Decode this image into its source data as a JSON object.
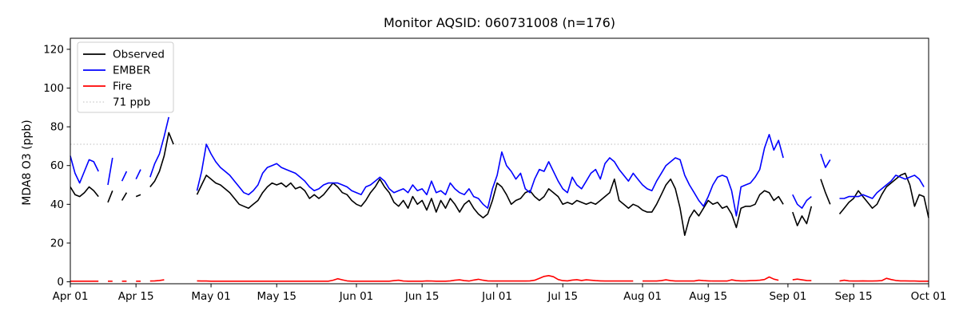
{
  "chart_data": {
    "type": "line",
    "title": "Monitor AQSID: 060731008 (n=176)",
    "xlabel": "",
    "ylabel": "MDA8 O3 (ppb)",
    "x_unit": "days since Apr 01 (daily values)",
    "xlim": [
      0,
      183
    ],
    "ylim": [
      -1,
      125.7
    ],
    "grid": false,
    "yticks": [
      0,
      20,
      40,
      60,
      80,
      100,
      120
    ],
    "xticks": {
      "days": [
        0,
        14,
        30,
        44,
        61,
        75,
        91,
        105,
        122,
        136,
        153,
        167,
        183
      ],
      "labels": [
        "Apr 01",
        "Apr 15",
        "May 01",
        "May 15",
        "Jun 01",
        "Jun 15",
        "Jul 01",
        "Jul 15",
        "Aug 01",
        "Aug 15",
        "Sep 01",
        "Sep 15",
        "Oct 01"
      ]
    },
    "threshold_line": {
      "value": 71,
      "label": "71 ppb",
      "color": "#c9c9c9",
      "linestyle": "dotted"
    },
    "legend": {
      "position": "upper left",
      "entries": [
        {
          "label": "Observed",
          "color": "#000000",
          "style": "solid"
        },
        {
          "label": "EMBER",
          "color": "#0000ff",
          "style": "solid"
        },
        {
          "label": "Fire",
          "color": "#ff0000",
          "style": "solid"
        },
        {
          "label": "71 ppb",
          "color": "#c9c9c9",
          "style": "dotted"
        }
      ]
    },
    "series": [
      {
        "name": "Observed",
        "color": "#000000",
        "values": [
          49,
          45,
          44,
          46,
          49,
          47,
          44,
          null,
          41,
          47,
          null,
          42,
          46,
          null,
          44,
          45,
          null,
          49,
          52,
          57,
          65,
          77,
          71,
          null,
          null,
          null,
          null,
          45,
          50,
          55,
          53,
          51,
          50,
          48,
          46,
          43,
          40,
          39,
          38,
          40,
          42,
          46,
          49,
          51,
          50,
          51,
          49,
          51,
          48,
          49,
          47,
          43,
          45,
          43,
          45,
          48,
          51,
          49,
          46,
          45,
          42,
          40,
          39,
          42,
          46,
          49,
          53,
          49,
          46,
          41,
          39,
          42,
          38,
          44,
          40,
          42,
          37,
          43,
          36,
          42,
          38,
          43,
          40,
          36,
          40,
          42,
          38,
          35,
          33,
          35,
          42,
          51,
          49,
          45,
          40,
          42,
          43,
          46,
          47,
          44,
          42,
          44,
          48,
          46,
          44,
          40,
          41,
          40,
          42,
          41,
          40,
          41,
          40,
          42,
          44,
          46,
          53,
          42,
          40,
          38,
          40,
          39,
          37,
          36,
          36,
          40,
          45,
          50,
          53,
          48,
          38,
          24,
          33,
          37,
          34,
          38,
          42,
          40,
          41,
          38,
          39,
          35,
          28,
          38,
          39,
          39,
          40,
          45,
          47,
          46,
          42,
          44,
          40,
          null,
          36,
          29,
          34,
          30,
          39,
          null,
          53,
          46,
          40,
          null,
          35,
          38,
          41,
          43,
          47,
          44,
          41,
          38,
          40,
          45,
          49,
          51,
          53,
          55,
          56,
          50,
          39,
          45,
          44,
          33
        ]
      },
      {
        "name": "EMBER",
        "color": "#0000ff",
        "values": [
          65,
          56,
          51,
          57,
          63,
          62,
          57,
          null,
          50,
          64,
          null,
          52,
          57,
          null,
          53,
          58,
          null,
          54,
          61,
          66,
          75,
          85,
          null,
          null,
          null,
          null,
          null,
          47,
          57,
          71,
          66,
          62,
          59,
          57,
          55,
          52,
          49,
          46,
          45,
          47,
          50,
          56,
          59,
          60,
          61,
          59,
          58,
          57,
          56,
          54,
          52,
          49,
          47,
          48,
          50,
          51,
          51,
          51,
          50,
          49,
          47,
          46,
          45,
          49,
          50,
          52,
          54,
          52,
          48,
          46,
          47,
          48,
          46,
          50,
          47,
          48,
          45,
          52,
          46,
          47,
          45,
          51,
          48,
          46,
          45,
          48,
          44,
          43,
          40,
          38,
          48,
          55,
          67,
          60,
          57,
          53,
          56,
          48,
          46,
          53,
          58,
          57,
          62,
          57,
          52,
          48,
          46,
          54,
          50,
          48,
          52,
          56,
          58,
          53,
          61,
          64,
          62,
          58,
          55,
          52,
          56,
          53,
          50,
          48,
          47,
          52,
          56,
          60,
          62,
          64,
          63,
          55,
          50,
          46,
          42,
          39,
          44,
          50,
          54,
          55,
          54,
          47,
          34,
          49,
          50,
          51,
          54,
          58,
          69,
          76,
          68,
          73,
          64,
          null,
          45,
          40,
          38,
          42,
          44,
          null,
          66,
          59,
          63,
          null,
          43,
          43,
          44,
          44,
          44,
          45,
          44,
          43,
          46,
          48,
          50,
          52,
          55,
          54,
          53,
          54,
          55,
          53,
          49,
          null
        ]
      },
      {
        "name": "Fire",
        "color": "#ff0000",
        "values": [
          0.3,
          0.3,
          0.3,
          0.3,
          0.3,
          0.3,
          0.3,
          null,
          0.3,
          0.3,
          null,
          0.3,
          0.3,
          null,
          0.3,
          0.3,
          null,
          0.4,
          0.5,
          0.7,
          1.0,
          null,
          null,
          null,
          null,
          null,
          null,
          0.5,
          0.4,
          0.4,
          0.3,
          0.3,
          0.3,
          0.3,
          0.3,
          0.3,
          0.3,
          0.3,
          0.3,
          0.3,
          0.3,
          0.3,
          0.3,
          0.3,
          0.3,
          0.3,
          0.3,
          0.3,
          0.3,
          0.3,
          0.3,
          0.3,
          0.3,
          0.3,
          0.3,
          0.3,
          0.8,
          1.6,
          1.0,
          0.5,
          0.3,
          0.3,
          0.3,
          0.3,
          0.3,
          0.3,
          0.3,
          0.3,
          0.3,
          0.6,
          0.8,
          0.4,
          0.3,
          0.3,
          0.3,
          0.3,
          0.5,
          0.4,
          0.3,
          0.3,
          0.3,
          0.5,
          0.8,
          1.0,
          0.6,
          0.4,
          0.9,
          1.3,
          0.8,
          0.5,
          0.4,
          0.4,
          0.4,
          0.4,
          0.4,
          0.4,
          0.4,
          0.4,
          0.5,
          0.8,
          1.8,
          2.8,
          3.2,
          2.6,
          1.2,
          0.6,
          0.5,
          0.9,
          1.1,
          0.7,
          1.0,
          0.8,
          0.6,
          0.5,
          0.4,
          0.4,
          0.4,
          0.4,
          0.4,
          0.4,
          0.4,
          null,
          0.4,
          0.4,
          0.4,
          0.4,
          0.6,
          1.0,
          0.6,
          0.4,
          0.4,
          0.4,
          0.4,
          0.4,
          0.8,
          0.6,
          0.5,
          0.4,
          0.4,
          0.4,
          0.4,
          1.0,
          0.6,
          0.5,
          0.5,
          0.6,
          0.7,
          0.8,
          1.2,
          2.5,
          1.4,
          0.8,
          null,
          null,
          1.0,
          1.4,
          1.0,
          0.7,
          0.6,
          null,
          0.4,
          null,
          0.4,
          null,
          0.4,
          0.8,
          0.5,
          0.4,
          0.4,
          0.5,
          0.4,
          0.4,
          0.5,
          0.6,
          1.8,
          1.2,
          0.7,
          0.5,
          0.5,
          0.4,
          0.4,
          0.3,
          0.3,
          0.3
        ]
      }
    ]
  }
}
